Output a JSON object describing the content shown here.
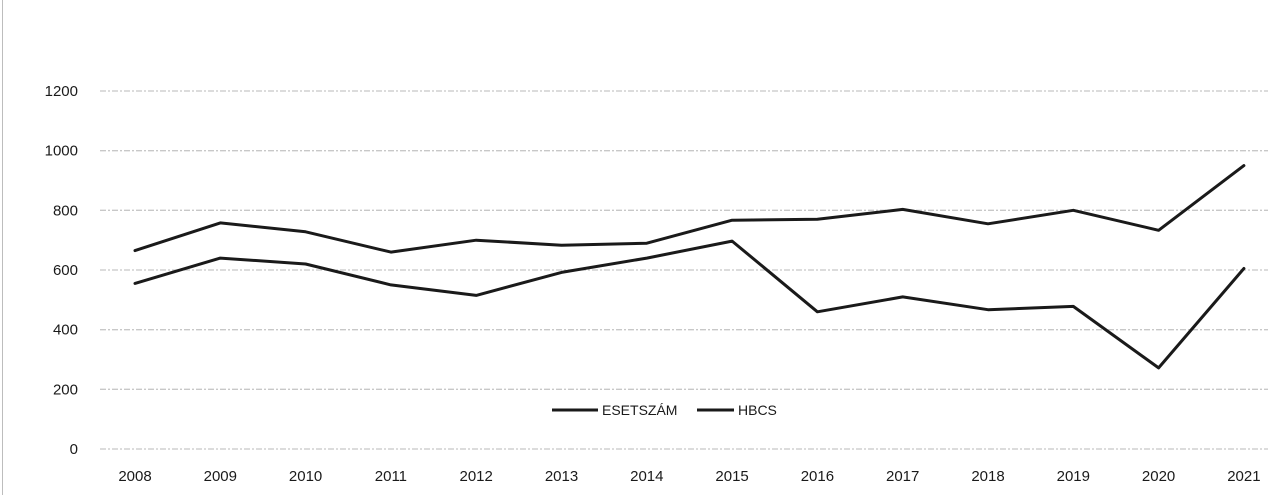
{
  "chart_data": {
    "type": "line",
    "x": [
      "2008",
      "2009",
      "2010",
      "2011",
      "2012",
      "2013",
      "2014",
      "2015",
      "2016",
      "2017",
      "2018",
      "2019",
      "2020",
      "2021"
    ],
    "series": [
      {
        "name": "ESETSZÁM",
        "values": [
          665,
          758,
          728,
          660,
          700,
          683,
          690,
          767,
          770,
          803,
          755,
          800,
          733,
          950
        ]
      },
      {
        "name": "HBCS",
        "values": [
          555,
          640,
          620,
          550,
          515,
          592,
          640,
          697,
          460,
          510,
          467,
          478,
          272,
          605
        ]
      }
    ],
    "ylim": [
      0,
      1200
    ],
    "yticks": [
      "0",
      "200",
      "400",
      "600",
      "800",
      "1000",
      "1200"
    ],
    "grid": "horizontal",
    "legend_position": "bottom-center",
    "colors": {
      "series": "#1a1a1a",
      "grid": "#c8c8c8",
      "text": "#1a1a1a"
    }
  }
}
